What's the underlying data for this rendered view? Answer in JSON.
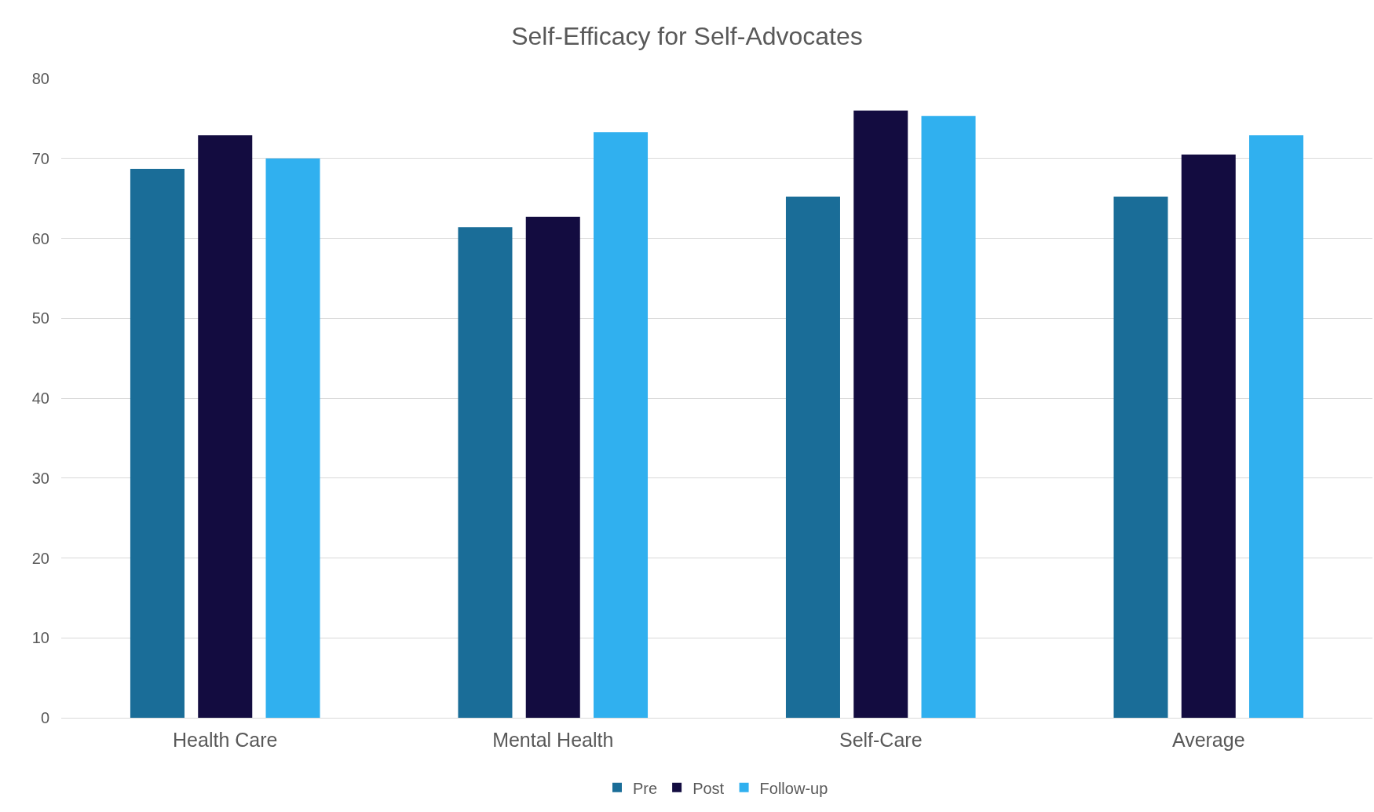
{
  "chart_data": {
    "type": "bar",
    "title": "Self-Efficacy for Self-Advocates",
    "categories": [
      "Health Care",
      "Mental Health",
      "Self-Care",
      "Average"
    ],
    "series": [
      {
        "name": "Pre",
        "color": "#1a6d98",
        "values": [
          68.7,
          61.4,
          65.2,
          65.2
        ]
      },
      {
        "name": "Post",
        "color": "#130c40",
        "values": [
          72.9,
          62.7,
          76.0,
          70.5
        ]
      },
      {
        "name": "Follow-up",
        "color": "#30b0ef",
        "values": [
          70.0,
          73.3,
          75.3,
          72.9
        ]
      }
    ],
    "ylim": [
      0,
      80
    ],
    "yticks": [
      0,
      10,
      20,
      30,
      40,
      50,
      60,
      70,
      80
    ],
    "grid": "y",
    "legend": "bottom"
  }
}
